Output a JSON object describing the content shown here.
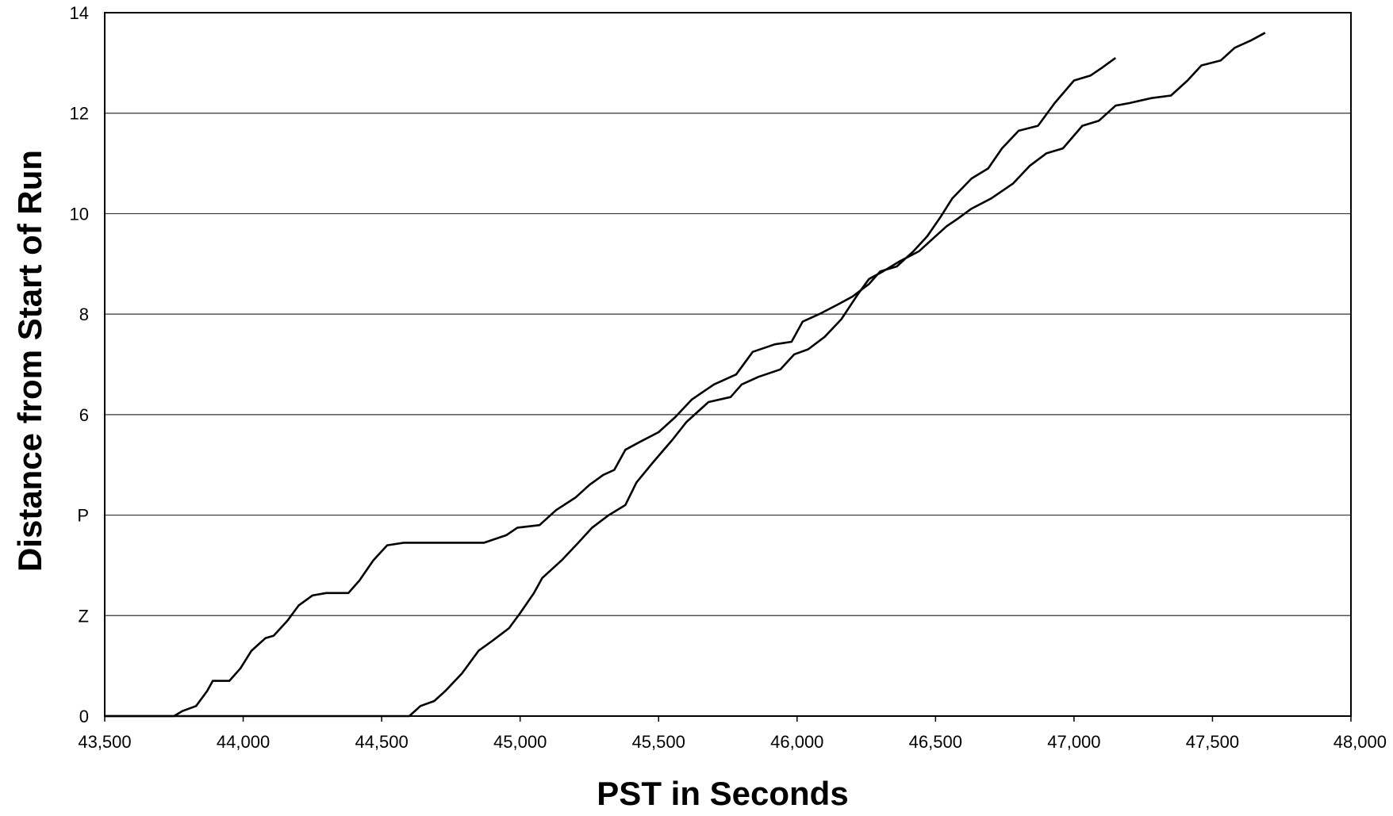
{
  "chart_data": {
    "type": "line",
    "title": "",
    "xlabel": "PST in Seconds",
    "ylabel": "Distance from Start of Run",
    "xlim": [
      43500,
      48000
    ],
    "ylim": [
      0,
      14
    ],
    "x_ticks": [
      "43,500",
      "44,000",
      "44,500",
      "45,000",
      "45,500",
      "46,000",
      "46,500",
      "47,000",
      "47,500",
      "48,000"
    ],
    "x_tick_values": [
      43500,
      44000,
      44500,
      45000,
      45500,
      46000,
      46500,
      47000,
      47500,
      48000
    ],
    "y_ticks": [
      "0",
      "Z",
      "P",
      "6",
      "8",
      "10",
      "12",
      "14"
    ],
    "y_tick_values": [
      0,
      2,
      4,
      6,
      8,
      10,
      12,
      14
    ],
    "grid": true,
    "legend": "none",
    "series": [
      {
        "values_xy": [
          [
            43500,
            0
          ],
          [
            43750,
            0
          ],
          [
            43780,
            0.1
          ],
          [
            43830,
            0.2
          ],
          [
            43870,
            0.5
          ],
          [
            43890,
            0.7
          ],
          [
            43950,
            0.7
          ],
          [
            43990,
            0.95
          ],
          [
            44030,
            1.3
          ],
          [
            44080,
            1.55
          ],
          [
            44110,
            1.6
          ],
          [
            44160,
            1.9
          ],
          [
            44200,
            2.2
          ],
          [
            44250,
            2.4
          ],
          [
            44300,
            2.45
          ],
          [
            44380,
            2.45
          ],
          [
            44420,
            2.7
          ],
          [
            44470,
            3.1
          ],
          [
            44520,
            3.4
          ],
          [
            44580,
            3.45
          ],
          [
            44870,
            3.45
          ],
          [
            44950,
            3.6
          ],
          [
            44990,
            3.75
          ],
          [
            45070,
            3.8
          ],
          [
            45130,
            4.1
          ],
          [
            45200,
            4.35
          ],
          [
            45250,
            4.6
          ],
          [
            45300,
            4.8
          ],
          [
            45340,
            4.9
          ],
          [
            45380,
            5.3
          ],
          [
            45430,
            5.45
          ],
          [
            45500,
            5.65
          ],
          [
            45560,
            5.95
          ],
          [
            45620,
            6.3
          ],
          [
            45700,
            6.6
          ],
          [
            45780,
            6.8
          ],
          [
            45840,
            7.25
          ],
          [
            45920,
            7.4
          ],
          [
            45980,
            7.45
          ],
          [
            46020,
            7.85
          ],
          [
            46080,
            8.0
          ],
          [
            46150,
            8.2
          ],
          [
            46200,
            8.35
          ],
          [
            46260,
            8.6
          ],
          [
            46300,
            8.85
          ],
          [
            46360,
            8.95
          ],
          [
            46420,
            9.25
          ],
          [
            46470,
            9.55
          ],
          [
            46520,
            9.95
          ],
          [
            46560,
            10.3
          ],
          [
            46630,
            10.7
          ],
          [
            46690,
            10.9
          ],
          [
            46740,
            11.3
          ],
          [
            46800,
            11.65
          ],
          [
            46870,
            11.75
          ],
          [
            46930,
            12.2
          ],
          [
            47000,
            12.65
          ],
          [
            47060,
            12.75
          ],
          [
            47100,
            12.9
          ],
          [
            47150,
            13.1
          ]
        ]
      },
      {
        "values_xy": [
          [
            43500,
            0
          ],
          [
            44600,
            0
          ],
          [
            44640,
            0.2
          ],
          [
            44690,
            0.3
          ],
          [
            44730,
            0.5
          ],
          [
            44790,
            0.85
          ],
          [
            44850,
            1.3
          ],
          [
            44900,
            1.5
          ],
          [
            44960,
            1.75
          ],
          [
            45000,
            2.05
          ],
          [
            45050,
            2.45
          ],
          [
            45080,
            2.75
          ],
          [
            45150,
            3.1
          ],
          [
            45210,
            3.45
          ],
          [
            45260,
            3.75
          ],
          [
            45320,
            4.0
          ],
          [
            45380,
            4.2
          ],
          [
            45420,
            4.65
          ],
          [
            45480,
            5.05
          ],
          [
            45550,
            5.5
          ],
          [
            45600,
            5.85
          ],
          [
            45680,
            6.25
          ],
          [
            45760,
            6.35
          ],
          [
            45800,
            6.6
          ],
          [
            45860,
            6.75
          ],
          [
            45940,
            6.9
          ],
          [
            45990,
            7.2
          ],
          [
            46040,
            7.3
          ],
          [
            46100,
            7.55
          ],
          [
            46160,
            7.9
          ],
          [
            46220,
            8.4
          ],
          [
            46260,
            8.7
          ],
          [
            46310,
            8.85
          ],
          [
            46370,
            9.05
          ],
          [
            46440,
            9.25
          ],
          [
            46500,
            9.55
          ],
          [
            46540,
            9.75
          ],
          [
            46580,
            9.9
          ],
          [
            46630,
            10.1
          ],
          [
            46700,
            10.3
          ],
          [
            46780,
            10.6
          ],
          [
            46840,
            10.95
          ],
          [
            46900,
            11.2
          ],
          [
            46960,
            11.3
          ],
          [
            47030,
            11.75
          ],
          [
            47090,
            11.85
          ],
          [
            47150,
            12.15
          ],
          [
            47200,
            12.2
          ],
          [
            47280,
            12.3
          ],
          [
            47350,
            12.35
          ],
          [
            47410,
            12.65
          ],
          [
            47460,
            12.95
          ],
          [
            47530,
            13.05
          ],
          [
            47580,
            13.3
          ],
          [
            47640,
            13.45
          ],
          [
            47690,
            13.6
          ]
        ]
      }
    ]
  }
}
